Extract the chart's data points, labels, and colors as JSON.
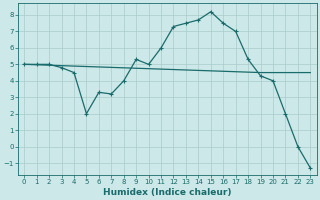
{
  "xlabel": "Humidex (Indice chaleur)",
  "ylabel": "",
  "bg_color": "#cce8e8",
  "grid_color": "#aacccc",
  "line_color": "#1a6b6b",
  "xlim": [
    -0.5,
    23.5
  ],
  "ylim": [
    -1.7,
    8.7
  ],
  "xticks": [
    0,
    1,
    2,
    3,
    4,
    5,
    6,
    7,
    8,
    9,
    10,
    11,
    12,
    13,
    14,
    15,
    16,
    17,
    18,
    19,
    20,
    21,
    22,
    23
  ],
  "yticks": [
    -1,
    0,
    1,
    2,
    3,
    4,
    5,
    6,
    7,
    8
  ],
  "curve1_x": [
    0,
    1,
    2,
    3,
    4,
    5,
    6,
    7,
    8,
    9,
    10,
    11,
    12,
    13,
    14,
    15,
    16,
    17,
    18,
    19,
    20,
    21,
    22,
    23
  ],
  "curve1_y": [
    5.0,
    5.0,
    5.0,
    4.8,
    4.5,
    2.0,
    3.3,
    3.2,
    4.0,
    5.3,
    5.0,
    6.0,
    7.3,
    7.5,
    7.7,
    8.2,
    7.5,
    7.0,
    5.3,
    4.3,
    4.0,
    2.0,
    0.0,
    -1.3
  ],
  "curve2_x": [
    0,
    19,
    23
  ],
  "curve2_y": [
    5.0,
    4.5,
    4.5
  ],
  "marker_size": 3,
  "line_width": 0.9,
  "xlabel_fontsize": 6.5,
  "tick_fontsize": 5.0
}
